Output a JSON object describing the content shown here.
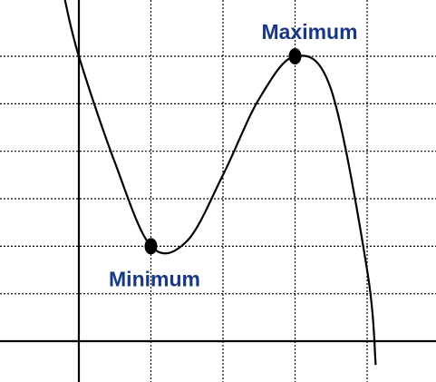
{
  "chart_data": {
    "type": "line",
    "title": "",
    "xlabel": "",
    "ylabel": "",
    "grid": true,
    "xlim": [
      -1,
      4.2
    ],
    "ylim": [
      -0.5,
      6.8
    ],
    "x_gridlines": [
      0,
      1,
      2,
      3,
      4
    ],
    "y_gridlines": [
      0,
      1,
      2,
      3,
      4,
      5,
      6
    ],
    "series": [
      {
        "x": [
          -0.2,
          0,
          0.5,
          1,
          1.5,
          2,
          2.5,
          3,
          3.5,
          4,
          4.12
        ],
        "y": [
          7.23,
          6,
          3.76,
          2,
          2.11,
          3.5,
          5.1,
          6,
          5.3,
          1.5,
          -0.5
        ]
      }
    ],
    "points": [
      {
        "label": "Minimum",
        "x": 1,
        "y": 2
      },
      {
        "label": "Maximum",
        "x": 3,
        "y": 6
      }
    ]
  },
  "colors": {
    "label": "#173885",
    "axes": "#000000",
    "grid": "#000000",
    "curve": "#000000"
  }
}
